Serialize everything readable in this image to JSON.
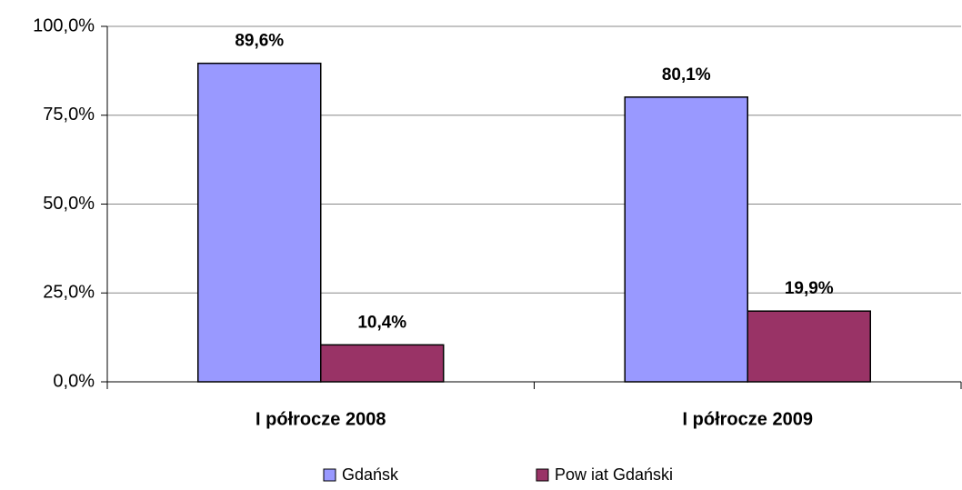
{
  "chart_data": {
    "type": "bar",
    "categories": [
      "I półrocze 2008",
      "I półrocze 2009"
    ],
    "series": [
      {
        "name": "Gdańsk",
        "color": "#9999ff",
        "values": [
          89.6,
          80.1
        ],
        "value_labels": [
          "89,6%",
          "80,1%"
        ]
      },
      {
        "name": "Pow iat Gdański",
        "color": "#993366",
        "values": [
          10.4,
          19.9
        ],
        "value_labels": [
          "10,4%",
          "19,9%"
        ]
      }
    ],
    "ylim": [
      0,
      100
    ],
    "yticks": [
      {
        "value": 0,
        "label": "0,0%"
      },
      {
        "value": 25,
        "label": "25,0%"
      },
      {
        "value": 50,
        "label": "50,0%"
      },
      {
        "value": 75,
        "label": "75,0%"
      },
      {
        "value": 100,
        "label": "100,0%"
      }
    ],
    "grid": true,
    "legend": "bottom"
  }
}
